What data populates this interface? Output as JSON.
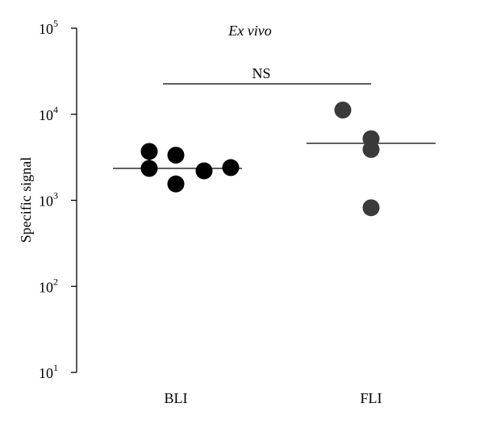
{
  "chart_data": {
    "type": "scatter",
    "title": "Ex vivo",
    "xlabel": "",
    "ylabel": "Specific signal",
    "yscale": "log",
    "ylim": [
      10,
      100000
    ],
    "yticks": [
      {
        "value": 10,
        "base": "10",
        "exp": "1"
      },
      {
        "value": 100,
        "base": "10",
        "exp": "2"
      },
      {
        "value": 1000,
        "base": "10",
        "exp": "3"
      },
      {
        "value": 10000,
        "base": "10",
        "exp": "4"
      },
      {
        "value": 100000,
        "base": "10",
        "exp": "5"
      }
    ],
    "categories": [
      "BLI",
      "FLI"
    ],
    "series": [
      {
        "category": "BLI",
        "color": "#000000",
        "points": [
          {
            "x": "BLI",
            "y": 3700
          },
          {
            "x": "BLI",
            "y": 2350
          },
          {
            "x": "BLI",
            "y": 3350
          },
          {
            "x": "BLI",
            "y": 1550
          },
          {
            "x": "BLI",
            "y": 2200
          },
          {
            "x": "BLI",
            "y": 2400
          }
        ],
        "median": 2350
      },
      {
        "category": "FLI",
        "color": "#3a3a3a",
        "points": [
          {
            "x": "FLI",
            "y": 11200
          },
          {
            "x": "FLI",
            "y": 5200
          },
          {
            "x": "FLI",
            "y": 3900
          },
          {
            "x": "FLI",
            "y": 820
          }
        ],
        "median": 4600
      }
    ],
    "annotations": [
      {
        "text": "NS",
        "between": [
          "BLI",
          "FLI"
        ]
      }
    ],
    "grid": false,
    "legend": "none"
  }
}
